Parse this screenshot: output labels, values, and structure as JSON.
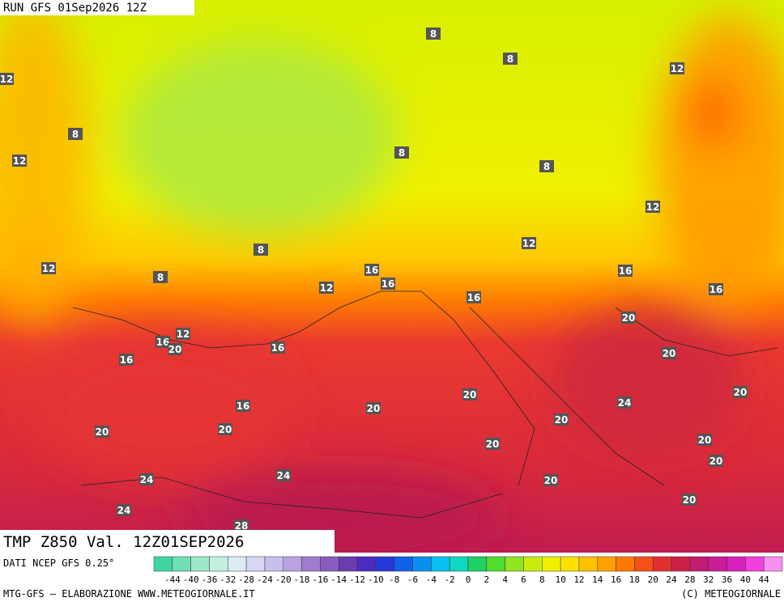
{
  "header": {
    "run": "RUN GFS 01Sep2026 12Z"
  },
  "title": "TMP Z850 Val. 12Z01SEP2026",
  "source": "DATI NCEP GFS 0.25°",
  "footer": {
    "left": "MTG-GFS — ELABORAZIONE WWW.METEOGIORNALE.IT",
    "right": "(C) METEOGIORNALE"
  },
  "legend": {
    "ticks": [
      -44,
      -40,
      -36,
      -32,
      -28,
      -24,
      -20,
      -18,
      -16,
      -14,
      -12,
      -10,
      -8,
      -6,
      -4,
      -2,
      0,
      2,
      4,
      6,
      8,
      10,
      12,
      14,
      16,
      18,
      20,
      24,
      28,
      32,
      36,
      40,
      44
    ],
    "colors": [
      "#3fd6a0",
      "#6fe0b4",
      "#9ae8c8",
      "#c2f0dc",
      "#dcecf4",
      "#d8d8f4",
      "#c8c0ec",
      "#b8a4e0",
      "#a07cd0",
      "#8a5cc0",
      "#6a3cb0",
      "#4a2cc0",
      "#2438d8",
      "#1060e8",
      "#0890f0",
      "#08c0f0",
      "#10d8c0",
      "#20d060",
      "#50dc30",
      "#90e420",
      "#c8ec10",
      "#f0f000",
      "#ffe000",
      "#ffc000",
      "#ffa000",
      "#ff7800",
      "#f45018",
      "#e03030",
      "#cc2048",
      "#c01c70",
      "#c81c98",
      "#d820c0",
      "#f040e0",
      "#f890f0"
    ]
  },
  "contour_labels": [
    8,
    8,
    12,
    12,
    8,
    12,
    8,
    8,
    12,
    12,
    8,
    12,
    8,
    16,
    12,
    16,
    16,
    16,
    16,
    20,
    12,
    16,
    20,
    16,
    16,
    20,
    20,
    20,
    24,
    16,
    20,
    20,
    20,
    20,
    20,
    20,
    20,
    24,
    24,
    20,
    24,
    20,
    28
  ]
}
